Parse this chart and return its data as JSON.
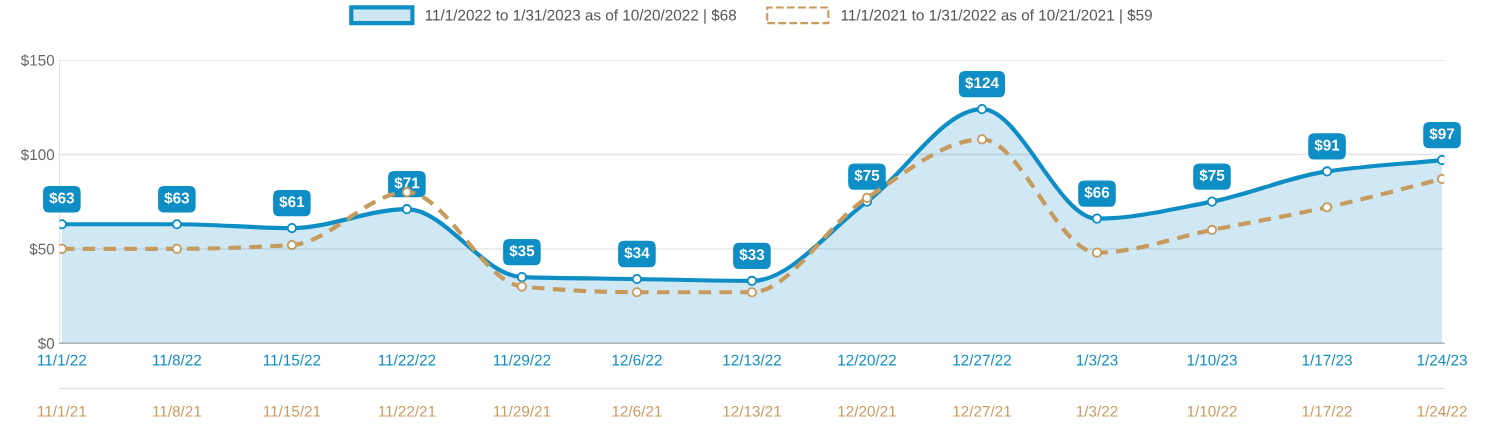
{
  "chart_data": {
    "type": "line",
    "categories": [
      "11/1/22",
      "11/8/22",
      "11/15/22",
      "11/22/22",
      "11/29/22",
      "12/6/22",
      "12/13/22",
      "12/20/22",
      "12/27/22",
      "1/3/23",
      "1/10/23",
      "1/17/23",
      "1/24/23"
    ],
    "series": [
      {
        "name": "11/1/2022 to 1/31/2023 as of 10/20/2022 | $68",
        "type": "area",
        "color": "#0e8ec4",
        "line_style": "solid",
        "values": [
          63,
          63,
          61,
          71,
          35,
          34,
          33,
          75,
          124,
          66,
          75,
          91,
          97
        ],
        "value_labels": [
          "$63",
          "$63",
          "$61",
          "$71",
          "$35",
          "$34",
          "$33",
          "$75",
          "$124",
          "$66",
          "$75",
          "$91",
          "$97"
        ]
      },
      {
        "name": "11/1/2021 to 1/31/2022 as of 10/21/2021 | $59",
        "color": "#c79a5e",
        "line_style": "dashed",
        "values": [
          50,
          50,
          52,
          80,
          30,
          27,
          27,
          77,
          108,
          48,
          60,
          72,
          87
        ]
      }
    ],
    "annotations": [
      "11/1/21",
      "11/8/21",
      "11/15/21",
      "11/22/21",
      "11/29/21",
      "12/6/21",
      "12/13/21",
      "12/20/21",
      "12/27/21",
      "1/3/22",
      "1/10/22",
      "1/17/22",
      "1/24/22"
    ],
    "ylim": [
      0,
      150
    ],
    "yticks": [
      {
        "value": 0,
        "label": "$0"
      },
      {
        "value": 50,
        "label": "$50"
      },
      {
        "value": 100,
        "label": "$100"
      },
      {
        "value": 150,
        "label": "$150"
      }
    ],
    "grid": "y",
    "legend": "top",
    "marker": "circle"
  }
}
